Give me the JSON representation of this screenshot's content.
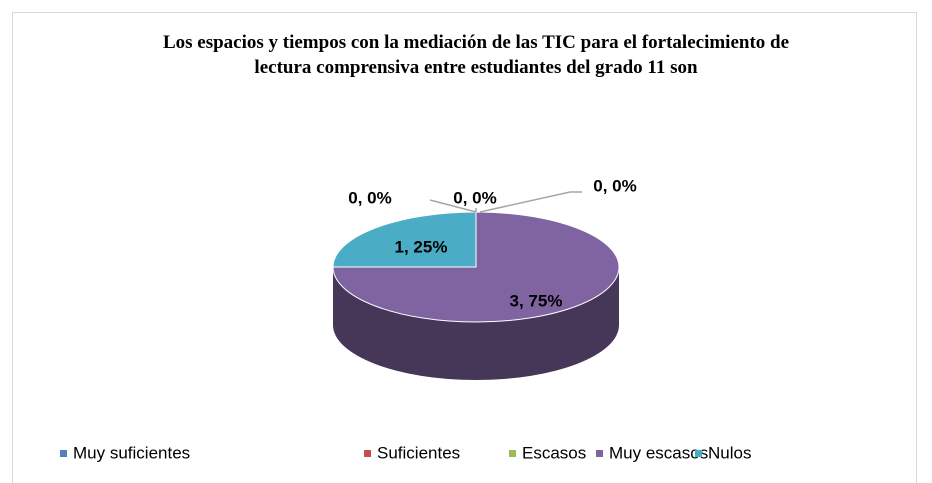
{
  "chart_data": {
    "type": "pie",
    "title": "Los espacios y tiempos con la mediación de las TIC para el fortalecimiento de lectura comprensiva entre estudiantes del grado 11 son",
    "categories": [
      "Muy suficientes",
      "Suficientes",
      "Escasos",
      "Muy escasos",
      "Nulos"
    ],
    "values": [
      0,
      0,
      0,
      3,
      1
    ],
    "value_labels": [
      "0, 0%",
      "0, 0%",
      "0, 0%",
      "3, 75%",
      "1, 25%"
    ],
    "colors": [
      "#4f81bd",
      "#c0504d",
      "#9bbb59",
      "#8064a2",
      "#4bacc6"
    ],
    "legend": "bottom"
  }
}
